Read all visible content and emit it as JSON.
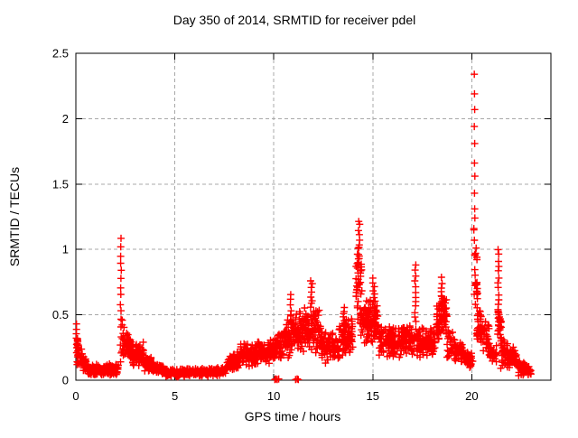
{
  "page": {
    "background": "#ffffff"
  },
  "chart_data": {
    "type": "scatter",
    "title": "Day 350 of 2014, SRMTID for receiver pdel",
    "xlabel": "GPS time / hours",
    "ylabel": "SRMTID / TECUs",
    "series_name": "SRMTID for receiver pdel",
    "xlim": [
      0,
      24
    ],
    "ylim": [
      0,
      2.5
    ],
    "xticks": [
      0,
      5,
      10,
      15,
      20
    ],
    "yticks": [
      0,
      0.5,
      1,
      1.5,
      2,
      2.5
    ],
    "ytick_labels": [
      "0",
      "0.5",
      "1",
      "1.5",
      "2",
      "2.5"
    ],
    "grid": {
      "show": true,
      "color": "#a8a8a8",
      "dash": [
        4,
        3
      ]
    },
    "legend": "none",
    "border_color": "#000000",
    "marker": {
      "shape": "plus",
      "color": "#ff0000",
      "size": 8,
      "stroke_width": 1.4
    },
    "seed": 1404,
    "bands_schema": [
      "x_start",
      "x_end",
      "y_low_start",
      "y_high_start",
      "y_low_end",
      "y_high_end",
      "count"
    ],
    "bands": [
      [
        0.02,
        0.12,
        0.07,
        0.4,
        0.08,
        0.42,
        22
      ],
      [
        0.1,
        0.55,
        0.1,
        0.33,
        0.05,
        0.15,
        45
      ],
      [
        0.55,
        2.15,
        0.03,
        0.12,
        0.04,
        0.13,
        165
      ],
      [
        2.32,
        3.0,
        0.15,
        0.52,
        0.09,
        0.22,
        85
      ],
      [
        3.0,
        3.45,
        0.08,
        0.3,
        0.09,
        0.32,
        55
      ],
      [
        3.45,
        3.95,
        0.06,
        0.22,
        0.05,
        0.16,
        50
      ],
      [
        3.95,
        4.5,
        0.04,
        0.14,
        0.03,
        0.11,
        55
      ],
      [
        4.5,
        7.6,
        0.02,
        0.09,
        0.03,
        0.1,
        300
      ],
      [
        7.6,
        8.3,
        0.05,
        0.18,
        0.08,
        0.24,
        75
      ],
      [
        8.3,
        8.7,
        0.1,
        0.32,
        0.1,
        0.28,
        40
      ],
      [
        8.7,
        10.0,
        0.08,
        0.28,
        0.12,
        0.34,
        130
      ],
      [
        10.0,
        10.5,
        0.12,
        0.35,
        0.15,
        0.4,
        50
      ],
      [
        10.5,
        11.3,
        0.15,
        0.45,
        0.2,
        0.55,
        85
      ],
      [
        11.3,
        12.4,
        0.2,
        0.58,
        0.2,
        0.55,
        125
      ],
      [
        12.4,
        13.3,
        0.12,
        0.4,
        0.15,
        0.36,
        90
      ],
      [
        13.3,
        14.0,
        0.15,
        0.45,
        0.2,
        0.5,
        75
      ],
      [
        14.15,
        14.45,
        0.45,
        1.1,
        0.4,
        0.9,
        40
      ],
      [
        14.4,
        15.3,
        0.25,
        0.7,
        0.25,
        0.62,
        115
      ],
      [
        15.3,
        16.6,
        0.15,
        0.45,
        0.17,
        0.43,
        140
      ],
      [
        16.6,
        17.1,
        0.17,
        0.42,
        0.19,
        0.44,
        48
      ],
      [
        17.2,
        18.15,
        0.15,
        0.42,
        0.17,
        0.4,
        100
      ],
      [
        18.2,
        18.75,
        0.25,
        0.6,
        0.32,
        0.75,
        70
      ],
      [
        18.75,
        19.6,
        0.14,
        0.45,
        0.1,
        0.28,
        80
      ],
      [
        19.6,
        20.05,
        0.08,
        0.25,
        0.08,
        0.22,
        42
      ],
      [
        20.1,
        20.3,
        0.55,
        1.2,
        0.5,
        1.0,
        30
      ],
      [
        20.25,
        20.9,
        0.22,
        0.62,
        0.18,
        0.42,
        70
      ],
      [
        20.9,
        21.25,
        0.12,
        0.3,
        0.12,
        0.28,
        32
      ],
      [
        21.3,
        21.5,
        0.3,
        0.6,
        0.25,
        0.5,
        25
      ],
      [
        21.45,
        22.3,
        0.09,
        0.38,
        0.07,
        0.24,
        90
      ],
      [
        22.3,
        23.0,
        0.03,
        0.16,
        0.03,
        0.12,
        65
      ]
    ],
    "spikes_schema": [
      "x_center",
      "y_base",
      "y_top",
      "count",
      "x_jitter"
    ],
    "spikes": [
      [
        2.27,
        0.15,
        1.08,
        16,
        0.03
      ],
      [
        10.85,
        0.45,
        0.65,
        6,
        0.04
      ],
      [
        11.9,
        0.55,
        0.76,
        8,
        0.05
      ],
      [
        13.55,
        0.42,
        0.56,
        6,
        0.04
      ],
      [
        14.3,
        0.9,
        1.22,
        10,
        0.04
      ],
      [
        15.05,
        0.6,
        0.78,
        7,
        0.05
      ],
      [
        17.15,
        0.4,
        0.88,
        13,
        0.03
      ],
      [
        18.5,
        0.55,
        0.78,
        8,
        0.05
      ],
      [
        21.35,
        0.45,
        1.0,
        14,
        0.03
      ]
    ],
    "points_schema": [
      "x",
      "y"
    ],
    "points": [
      [
        20.13,
        2.34
      ],
      [
        20.14,
        2.19
      ],
      [
        20.15,
        2.07
      ],
      [
        20.13,
        1.94
      ],
      [
        20.15,
        1.81
      ],
      [
        20.14,
        1.66
      ],
      [
        20.16,
        1.56
      ],
      [
        20.14,
        1.43
      ],
      [
        20.15,
        1.31
      ],
      [
        20.16,
        1.24
      ],
      [
        10.05,
        0.005
      ],
      [
        10.1,
        0.01
      ],
      [
        10.17,
        0.005
      ],
      [
        10.25,
        0.01
      ],
      [
        11.1,
        0.005
      ],
      [
        11.18,
        0.01
      ],
      [
        11.24,
        0.005
      ],
      [
        0.03,
        0.43
      ]
    ]
  }
}
